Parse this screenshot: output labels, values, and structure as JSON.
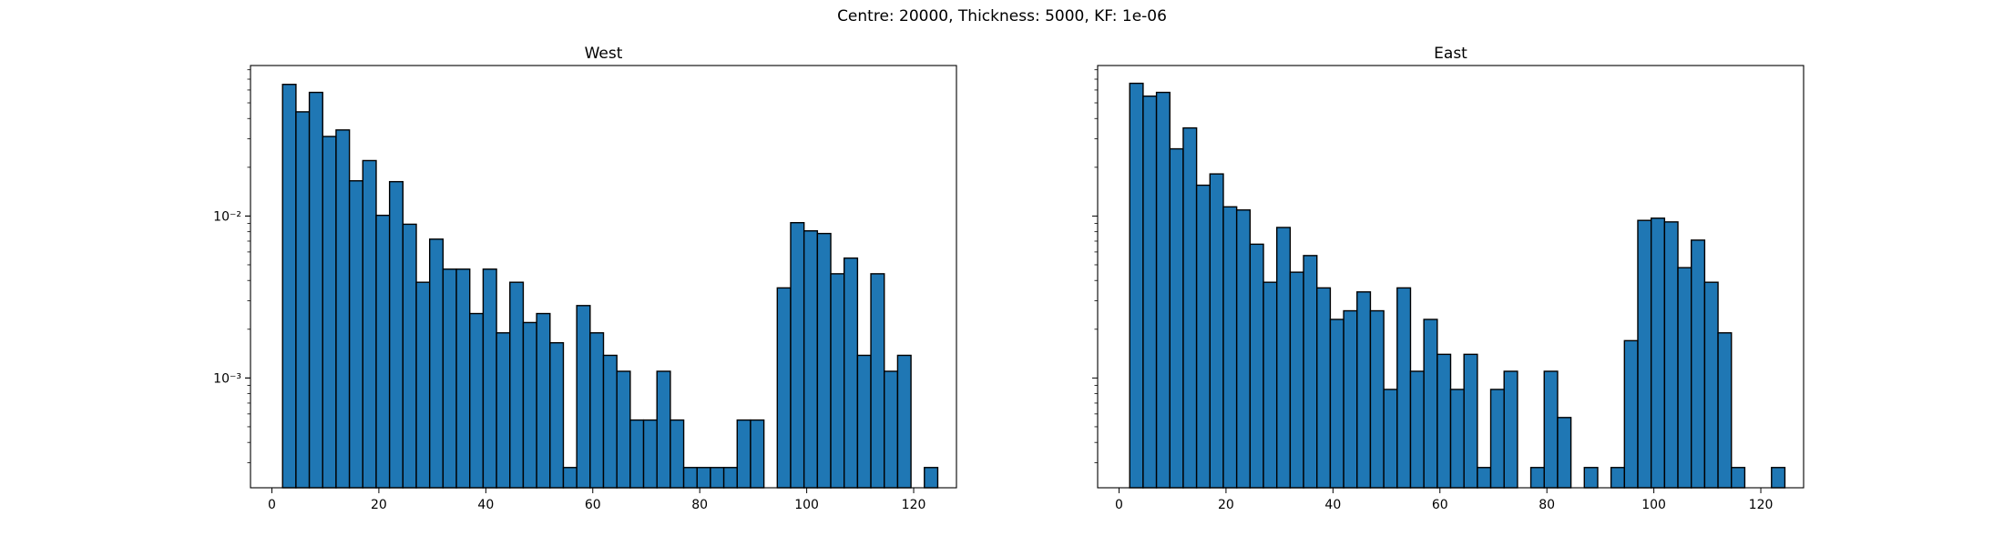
{
  "figure": {
    "suptitle": "Centre: 20000, Thickness: 5000, KF: 1e-06",
    "bar_color": "#1f77b4",
    "edge_color": "#000000"
  },
  "chart_data": [
    {
      "type": "bar",
      "title": "West",
      "xlabel": "",
      "ylabel": "",
      "yscale": "log",
      "xlim": [
        -4,
        128
      ],
      "ylim": [
        0.00021,
        0.085
      ],
      "xticks": [
        0,
        20,
        40,
        60,
        80,
        100,
        120
      ],
      "xtick_labels": [
        "0",
        "20",
        "40",
        "60",
        "80",
        "100",
        "120"
      ],
      "yticks": [
        0.01,
        0.001
      ],
      "ytick_labels": [
        "10⁻²",
        "10⁻³"
      ],
      "bin_edges_start": 2,
      "bin_width": 2.5,
      "values": [
        0.065,
        0.044,
        0.058,
        0.031,
        0.034,
        0.0165,
        0.022,
        0.0101,
        0.0163,
        0.0089,
        0.0039,
        0.0072,
        0.0047,
        0.0047,
        0.0025,
        0.0047,
        0.0019,
        0.0039,
        0.0022,
        0.0025,
        0.00165,
        0.00028,
        0.0028,
        0.0019,
        0.00138,
        0.0011,
        0.00055,
        0.00055,
        0.0011,
        0.00055,
        0.00028,
        0.00028,
        0.00028,
        0.00028,
        0.00055,
        0.00055,
        0,
        0.0036,
        0.0091,
        0.0081,
        0.0078,
        0.0044,
        0.0055,
        0.00138,
        0.0044,
        0.0011,
        0.00138,
        0,
        0.00028
      ]
    },
    {
      "type": "bar",
      "title": "East",
      "xlabel": "",
      "ylabel": "",
      "yscale": "log",
      "xlim": [
        -4,
        128
      ],
      "ylim": [
        0.00021,
        0.085
      ],
      "xticks": [
        0,
        20,
        40,
        60,
        80,
        100,
        120
      ],
      "xtick_labels": [
        "0",
        "20",
        "40",
        "60",
        "80",
        "100",
        "120"
      ],
      "yticks": [],
      "ytick_labels": [],
      "bin_edges_start": 2,
      "bin_width": 2.5,
      "values": [
        0.066,
        0.055,
        0.058,
        0.026,
        0.035,
        0.0155,
        0.0182,
        0.0114,
        0.0109,
        0.0067,
        0.0039,
        0.0085,
        0.0045,
        0.0057,
        0.0036,
        0.0023,
        0.0026,
        0.0034,
        0.0026,
        0.00085,
        0.0036,
        0.0011,
        0.0023,
        0.0014,
        0.00085,
        0.0014,
        0.00028,
        0.00085,
        0.0011,
        0,
        0.00028,
        0.0011,
        0.00057,
        0,
        0.00028,
        0,
        0.00028,
        0.0017,
        0.0094,
        0.0097,
        0.0092,
        0.0048,
        0.0071,
        0.0039,
        0.0019,
        0.00028,
        0,
        0,
        0.00028
      ]
    }
  ]
}
